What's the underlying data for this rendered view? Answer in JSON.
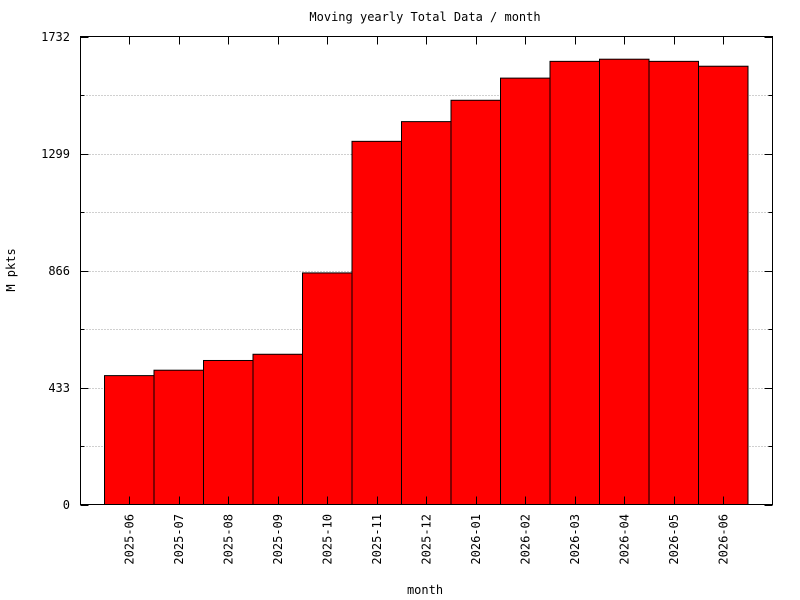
{
  "chart_data": {
    "type": "bar",
    "title": "Moving yearly Total Data / month",
    "xlabel": "month",
    "ylabel": "M pkts",
    "ylim": [
      0,
      1732
    ],
    "yticks": [
      0,
      433,
      866,
      1299,
      1732
    ],
    "grid": true,
    "bar_color": "#ff0000",
    "categories": [
      "2025-06",
      "2025-07",
      "2025-08",
      "2025-09",
      "2025-10",
      "2025-11",
      "2025-12",
      "2026-01",
      "2026-02",
      "2026-03",
      "2026-04",
      "2026-05",
      "2026-06"
    ],
    "values": [
      477,
      497,
      533,
      556,
      857,
      1344,
      1417,
      1496,
      1578,
      1640,
      1648,
      1640,
      1622
    ]
  }
}
